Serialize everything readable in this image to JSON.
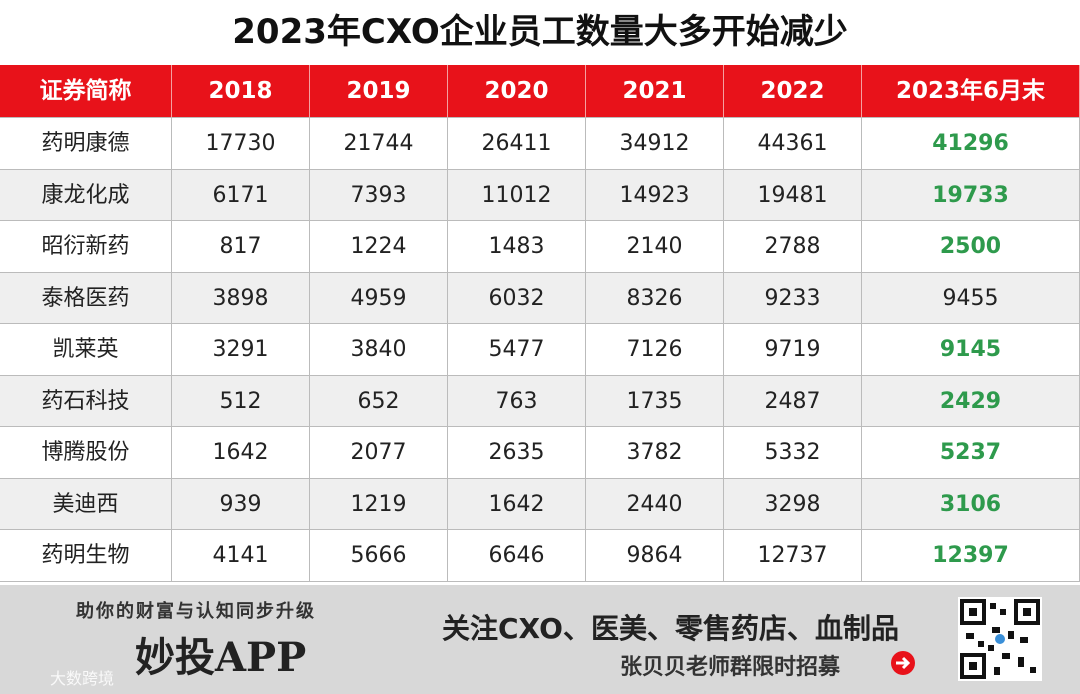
{
  "title": "2023年CXO企业员工数量大多开始减少",
  "table": {
    "header": [
      "证券简称",
      "2018",
      "2019",
      "2020",
      "2021",
      "2022",
      "2023年6月末"
    ],
    "rows": [
      [
        "药明康德",
        "17730",
        "21744",
        "26411",
        "34912",
        "44361",
        "41296"
      ],
      [
        "康龙化成",
        "6171",
        "7393",
        "11012",
        "14923",
        "19481",
        "19733"
      ],
      [
        "昭衍新药",
        "817",
        "1224",
        "1483",
        "2140",
        "2788",
        "2500"
      ],
      [
        "泰格医药",
        "3898",
        "4959",
        "6032",
        "8326",
        "9233",
        "9455"
      ],
      [
        "凯莱英",
        "3291",
        "3840",
        "5477",
        "7126",
        "9719",
        "9145"
      ],
      [
        "药石科技",
        "512",
        "652",
        "763",
        "1735",
        "2487",
        "2429"
      ],
      [
        "博腾股份",
        "1642",
        "2077",
        "2635",
        "3782",
        "5332",
        "5237"
      ],
      [
        "美迪西",
        "939",
        "1219",
        "1642",
        "2440",
        "3298",
        "3106"
      ],
      [
        "药明生物",
        "4141",
        "5666",
        "6646",
        "9864",
        "12737",
        "12397"
      ]
    ],
    "last_column_colors": [
      "#2e9a4c",
      "#2e9a4c",
      "#2e9a4c",
      "#222222",
      "#2e9a4c",
      "#2e9a4c",
      "#2e9a4c",
      "#2e9a4c",
      "#2e9a4c"
    ]
  },
  "footer": {
    "slogan": "助你的财富与认知同步升级",
    "brand": "妙投APP",
    "topics": "关注CXO、医美、零售药店、血制品",
    "recruit": "张贝贝老师群限时招募",
    "watermark": "大数跨境"
  }
}
